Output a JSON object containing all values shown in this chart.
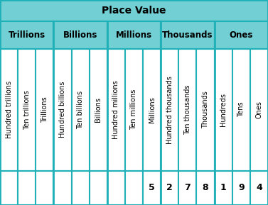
{
  "title": "Place Value",
  "group_headers": [
    "Trillions",
    "Billions",
    "Millions",
    "Thousands",
    "Ones"
  ],
  "column_labels": [
    "Hundred trillions",
    "Ten trillions",
    "Trillions",
    "Hundred billions",
    "Ten billions",
    "Billions",
    "Hundred millions",
    "Ten millions",
    "Millions",
    "Hundred thousands",
    "Ten thousands",
    "Thousands",
    "Hundreds",
    "Tens",
    "Ones"
  ],
  "values": [
    "",
    "",
    "",
    "",
    "",
    "",
    "",
    "",
    "5",
    "2",
    "7",
    "8",
    "1",
    "9",
    "4"
  ],
  "group_spans": [
    3,
    3,
    3,
    3,
    3
  ],
  "header_bg": "#72d0d4",
  "cell_bg": "#ffffff",
  "border_color": "#1fb0b8",
  "title_fontsize": 10,
  "group_fontsize": 8.5,
  "col_fontsize": 7.0,
  "val_fontsize": 9
}
